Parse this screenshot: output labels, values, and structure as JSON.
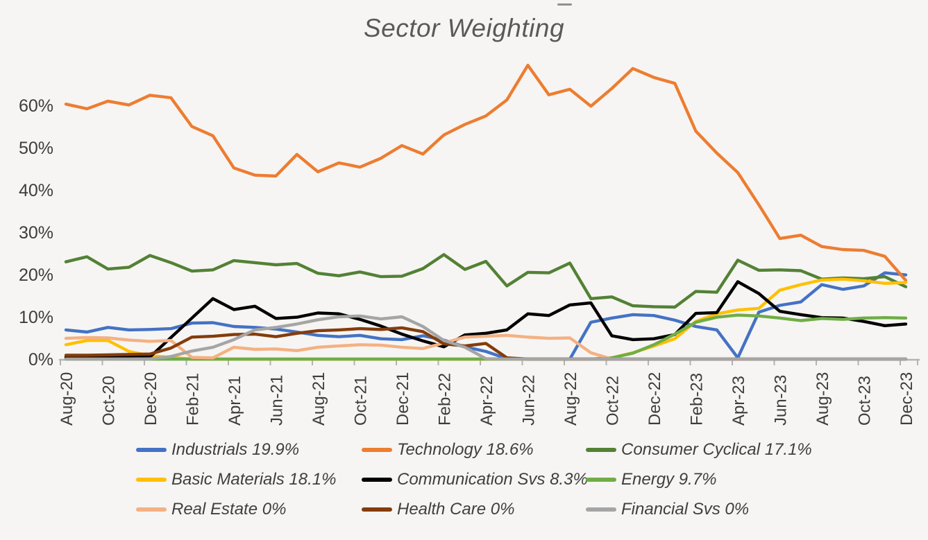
{
  "title": "Sector Weighting",
  "y_axis": {
    "tick_labels": [
      "0%",
      "10%",
      "20%",
      "30%",
      "40%",
      "50%",
      "60%"
    ]
  },
  "x_axis": {
    "tick_labels": [
      "Aug-20",
      "Oct-20",
      "Dec-20",
      "Feb-21",
      "Apr-21",
      "Jun-21",
      "Aug-21",
      "Oct-21",
      "Dec-21",
      "Feb-22",
      "Apr-22",
      "Jun-22",
      "Aug-22",
      "Oct-22",
      "Dec-22",
      "Feb-23",
      "Apr-23",
      "Jun-23",
      "Aug-23",
      "Oct-23",
      "Dec-23"
    ]
  },
  "chart_data": {
    "type": "line",
    "title": "Sector Weighting",
    "xlabel": "",
    "ylabel": "",
    "ylim": [
      0,
      72
    ],
    "y_tick_step_percent": 10,
    "grid": false,
    "legend_position": "bottom",
    "x": [
      "Aug-20",
      "Sep-20",
      "Oct-20",
      "Nov-20",
      "Dec-20",
      "Jan-21",
      "Feb-21",
      "Mar-21",
      "Apr-21",
      "May-21",
      "Jun-21",
      "Jul-21",
      "Aug-21",
      "Sep-21",
      "Oct-21",
      "Nov-21",
      "Dec-21",
      "Jan-22",
      "Feb-22",
      "Mar-22",
      "Apr-22",
      "May-22",
      "Jun-22",
      "Jul-22",
      "Aug-22",
      "Sep-22",
      "Oct-22",
      "Nov-22",
      "Dec-22",
      "Jan-23",
      "Feb-23",
      "Mar-23",
      "Apr-23",
      "May-23",
      "Jun-23",
      "Jul-23",
      "Aug-23",
      "Sep-23",
      "Oct-23",
      "Nov-23",
      "Dec-23"
    ],
    "series": [
      {
        "name": "Industrials",
        "legend_label": "Industrials 19.9%",
        "final_value_percent": 19.9,
        "color": "#4472c4",
        "values": [
          6.9,
          6.4,
          7.5,
          6.9,
          7.0,
          7.2,
          8.5,
          8.6,
          7.7,
          7.5,
          7.1,
          6.4,
          5.6,
          5.3,
          5.6,
          4.8,
          4.6,
          5.5,
          4.5,
          2.9,
          1.8,
          0.1,
          0,
          0,
          0,
          8.7,
          9.7,
          10.5,
          10.3,
          9.2,
          7.7,
          6.9,
          0.3,
          11.1,
          12.7,
          13.5,
          17.6,
          16.5,
          17.3,
          20.4,
          19.9
        ]
      },
      {
        "name": "Technology",
        "legend_label": "Technology 18.6%",
        "final_value_percent": 18.6,
        "color": "#ed7d31",
        "values": [
          60.3,
          59.2,
          61.0,
          60.1,
          62.4,
          61.8,
          55.0,
          52.8,
          45.2,
          43.5,
          43.3,
          48.4,
          44.3,
          46.4,
          45.4,
          47.5,
          50.5,
          48.5,
          53.0,
          55.5,
          57.5,
          61.3,
          69.5,
          62.5,
          63.8,
          59.8,
          64.0,
          68.7,
          66.6,
          65.2,
          53.9,
          48.7,
          44.1,
          36.5,
          28.5,
          29.3,
          26.6,
          25.9,
          25.7,
          24.3,
          18.6
        ]
      },
      {
        "name": "Consumer Cyclical",
        "legend_label": "Consumer Cyclical 17.1%",
        "final_value_percent": 17.1,
        "color": "#538135",
        "values": [
          23.0,
          24.2,
          21.3,
          21.7,
          24.5,
          22.8,
          20.8,
          21.1,
          23.3,
          22.8,
          22.3,
          22.6,
          20.3,
          19.7,
          20.6,
          19.5,
          19.6,
          21.4,
          24.7,
          21.2,
          23.1,
          17.3,
          20.5,
          20.4,
          22.7,
          14.3,
          14.7,
          12.6,
          12.4,
          12.3,
          16.0,
          15.8,
          23.4,
          21.0,
          21.1,
          20.9,
          18.9,
          19.2,
          19.0,
          19.5,
          17.1
        ]
      },
      {
        "name": "Basic Materials",
        "legend_label": "Basic Materials 18.1%",
        "final_value_percent": 18.1,
        "color": "#ffc000",
        "values": [
          3.4,
          4.4,
          4.4,
          1.8,
          0.8,
          0.4,
          0,
          0,
          0,
          0,
          0,
          0,
          0,
          0,
          0,
          0,
          0,
          0,
          0,
          0,
          0,
          0,
          0,
          0,
          0,
          0,
          0.3,
          1.5,
          3.1,
          4.8,
          8.9,
          10.7,
          11.6,
          12.0,
          16.3,
          17.6,
          18.7,
          18.9,
          18.5,
          17.9,
          18.1
        ]
      },
      {
        "name": "Communication Svs",
        "legend_label": "Communication Svs 8.3%",
        "final_value_percent": 8.3,
        "color": "#000000",
        "values": [
          0.4,
          0.4,
          0.5,
          0.5,
          0.5,
          5.1,
          9.7,
          14.3,
          11.7,
          12.5,
          9.6,
          9.9,
          10.9,
          10.7,
          9.4,
          7.8,
          5.9,
          4.3,
          2.9,
          5.7,
          6.1,
          6.9,
          10.7,
          10.3,
          12.8,
          13.3,
          5.5,
          4.6,
          4.8,
          5.8,
          10.8,
          11.0,
          18.3,
          15.5,
          11.3,
          10.5,
          9.8,
          9.7,
          8.9,
          7.9,
          8.3
        ]
      },
      {
        "name": "Energy",
        "legend_label": "Energy 9.7%",
        "final_value_percent": 9.7,
        "color": "#70ad47",
        "values": [
          0,
          0,
          0,
          0,
          0,
          0,
          0,
          0,
          0,
          0,
          0,
          0,
          0,
          0,
          0,
          0,
          0,
          0,
          0,
          0,
          0,
          0,
          0,
          0,
          0,
          0,
          0.3,
          1.4,
          3.4,
          5.9,
          8.7,
          9.9,
          10.4,
          10.2,
          9.7,
          9.1,
          9.6,
          9.4,
          9.7,
          9.8,
          9.7
        ]
      },
      {
        "name": "Real Estate",
        "legend_label": "Real Estate 0%",
        "final_value_percent": 0,
        "color": "#f4b183",
        "values": [
          4.9,
          5.1,
          5.0,
          4.5,
          4.2,
          4.4,
          0.4,
          0.3,
          2.8,
          2.3,
          2.4,
          2.0,
          2.8,
          3.1,
          3.4,
          3.3,
          2.8,
          2.5,
          3.8,
          5.2,
          5.4,
          5.6,
          5.2,
          4.9,
          5.0,
          1.5,
          0,
          0,
          0,
          0,
          0,
          0,
          0,
          0,
          0,
          0,
          0,
          0,
          0,
          0,
          0
        ]
      },
      {
        "name": "Health Care",
        "legend_label": "Health Care 0%",
        "final_value_percent": 0,
        "color": "#843c0c",
        "values": [
          0.9,
          0.9,
          1.0,
          1.1,
          1.2,
          2.6,
          5.2,
          5.4,
          5.8,
          5.9,
          5.3,
          6.1,
          6.7,
          6.9,
          7.2,
          7.0,
          7.4,
          6.5,
          3.6,
          3.1,
          3.7,
          0.3,
          0,
          0,
          0,
          0,
          0,
          0,
          0,
          0,
          0,
          0,
          0,
          0,
          0,
          0,
          0,
          0,
          0,
          0,
          0
        ]
      },
      {
        "name": "Financial Svs",
        "legend_label": "Financial Svs 0%",
        "final_value_percent": 0,
        "color": "#a5a5a5",
        "values": [
          0,
          0,
          0,
          0,
          0.05,
          0.6,
          1.9,
          2.8,
          4.6,
          6.9,
          7.5,
          8.3,
          9.3,
          10.0,
          10.2,
          9.5,
          10.0,
          7.7,
          4.4,
          2.8,
          0.1,
          0,
          0,
          0,
          0,
          0,
          0,
          0,
          0,
          0,
          0,
          0,
          0,
          0,
          0,
          0,
          0,
          0,
          0,
          0,
          0
        ]
      }
    ],
    "colors": {
      "background": "#f6f5f3",
      "axis_line": "#b3b3b1",
      "axis_text": "#3d3d3b",
      "title_text": "#595957",
      "legend_text": "#3f3f3d"
    }
  }
}
